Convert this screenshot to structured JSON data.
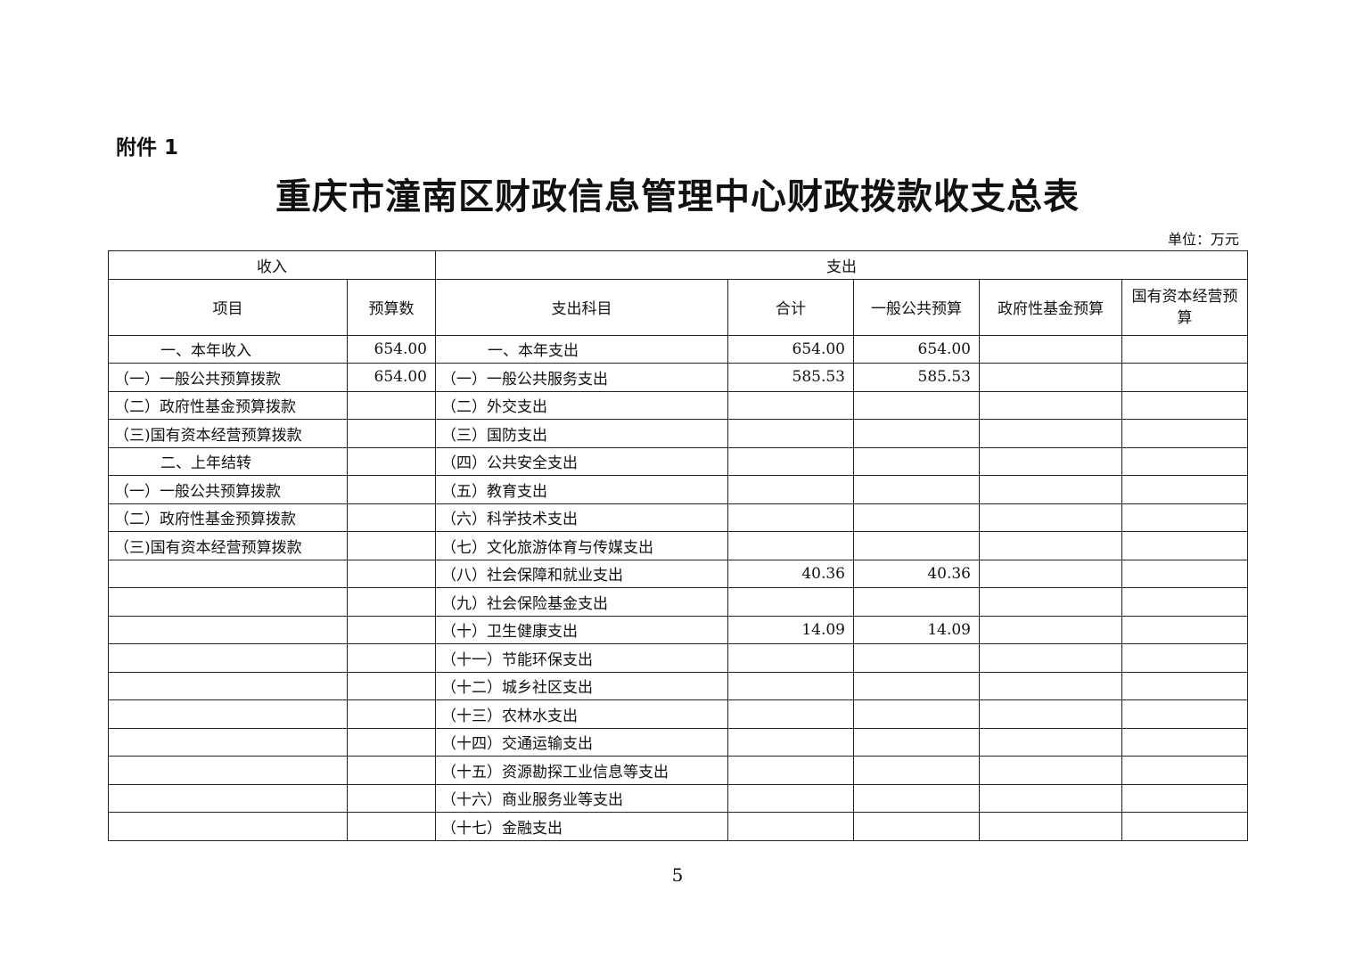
{
  "attachment_label": "附件 1",
  "title": "重庆市潼南区财政信息管理中心财政拨款收支总表",
  "unit": "单位：万元",
  "table": {
    "group_headers": {
      "income": "收入",
      "expense": "支出"
    },
    "columns": [
      "项目",
      "预算数",
      "支出科目",
      "合计",
      "一般公共预算",
      "政府性基金预算",
      "国有资本经营预算"
    ],
    "rows": [
      {
        "item": "一、本年收入",
        "budget": "654.00",
        "subject": "一、本年支出",
        "total": "654.00",
        "general": "654.00",
        "fund": "",
        "state": ""
      },
      {
        "item": "（一）一般公共预算拨款",
        "budget": "654.00",
        "subject": "（一）一般公共服务支出",
        "total": "585.53",
        "general": "585.53",
        "fund": "",
        "state": ""
      },
      {
        "item": "（二）政府性基金预算拨款",
        "budget": "",
        "subject": "（二）外交支出",
        "total": "",
        "general": "",
        "fund": "",
        "state": ""
      },
      {
        "item": "（三)国有资本经营预算拨款",
        "budget": "",
        "subject": "（三）国防支出",
        "total": "",
        "general": "",
        "fund": "",
        "state": ""
      },
      {
        "item": "二、上年结转",
        "budget": "",
        "subject": "（四）公共安全支出",
        "total": "",
        "general": "",
        "fund": "",
        "state": ""
      },
      {
        "item": "（一）一般公共预算拨款",
        "budget": "",
        "subject": "（五）教育支出",
        "total": "",
        "general": "",
        "fund": "",
        "state": ""
      },
      {
        "item": "（二）政府性基金预算拨款",
        "budget": "",
        "subject": "（六）科学技术支出",
        "total": "",
        "general": "",
        "fund": "",
        "state": ""
      },
      {
        "item": "（三)国有资本经营预算拨款",
        "budget": "",
        "subject": "（七）文化旅游体育与传媒支出",
        "total": "",
        "general": "",
        "fund": "",
        "state": ""
      },
      {
        "item": "",
        "budget": "",
        "subject": "（八）社会保障和就业支出",
        "total": "40.36",
        "general": "40.36",
        "fund": "",
        "state": ""
      },
      {
        "item": "",
        "budget": "",
        "subject": "（九）社会保险基金支出",
        "total": "",
        "general": "",
        "fund": "",
        "state": ""
      },
      {
        "item": "",
        "budget": "",
        "subject": "（十）卫生健康支出",
        "total": "14.09",
        "general": "14.09",
        "fund": "",
        "state": ""
      },
      {
        "item": "",
        "budget": "",
        "subject": "（十一）节能环保支出",
        "total": "",
        "general": "",
        "fund": "",
        "state": ""
      },
      {
        "item": "",
        "budget": "",
        "subject": "（十二）城乡社区支出",
        "total": "",
        "general": "",
        "fund": "",
        "state": ""
      },
      {
        "item": "",
        "budget": "",
        "subject": "（十三）农林水支出",
        "total": "",
        "general": "",
        "fund": "",
        "state": ""
      },
      {
        "item": "",
        "budget": "",
        "subject": "（十四）交通运输支出",
        "total": "",
        "general": "",
        "fund": "",
        "state": ""
      },
      {
        "item": "",
        "budget": "",
        "subject": "（十五）资源勘探工业信息等支出",
        "total": "",
        "general": "",
        "fund": "",
        "state": ""
      },
      {
        "item": "",
        "budget": "",
        "subject": "（十六）商业服务业等支出",
        "total": "",
        "general": "",
        "fund": "",
        "state": ""
      },
      {
        "item": "",
        "budget": "",
        "subject": "（十七）金融支出",
        "total": "",
        "general": "",
        "fund": "",
        "state": ""
      }
    ]
  },
  "page_number": "5"
}
